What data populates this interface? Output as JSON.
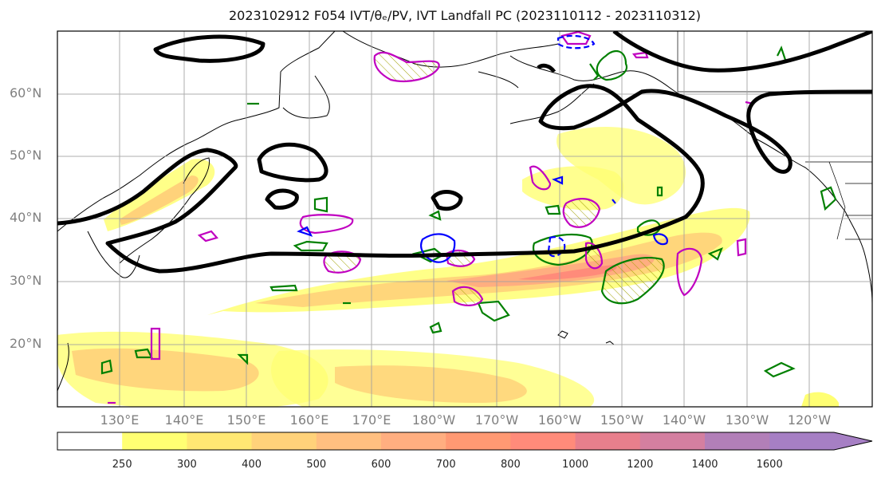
{
  "title": "2023102912 F054 IVT/θₑ/PV, IVT Landfall PC (2023110112 - 2023110312)",
  "latitude_labels": [
    "60°N",
    "50°N",
    "40°N",
    "30°N",
    "20°N"
  ],
  "longitude_labels": [
    "130°E",
    "140°E",
    "150°E",
    "160°E",
    "170°E",
    "180°W",
    "170°W",
    "160°W",
    "150°W",
    "140°W",
    "130°W",
    "120°W"
  ],
  "colorbar": {
    "tick_labels": [
      "250",
      "300",
      "400",
      "500",
      "600",
      "700",
      "800",
      "1000",
      "1200",
      "1400",
      "1600"
    ],
    "colors": [
      "#ffffff",
      "#ffff73",
      "#ffe873",
      "#ffd27a",
      "#ffbf80",
      "#ffae80",
      "#ff9973",
      "#ff8b7a",
      "#e87f8c",
      "#d47fa0",
      "#b27fb8",
      "#a67fc4"
    ]
  },
  "colors": {
    "ivt_contour": "#000000",
    "theta_e": "#008000",
    "pv_positive": "#c000c0",
    "pv_negative": "#0000ff",
    "coastline": "#000000",
    "gridline": "#a0a0a0"
  }
}
